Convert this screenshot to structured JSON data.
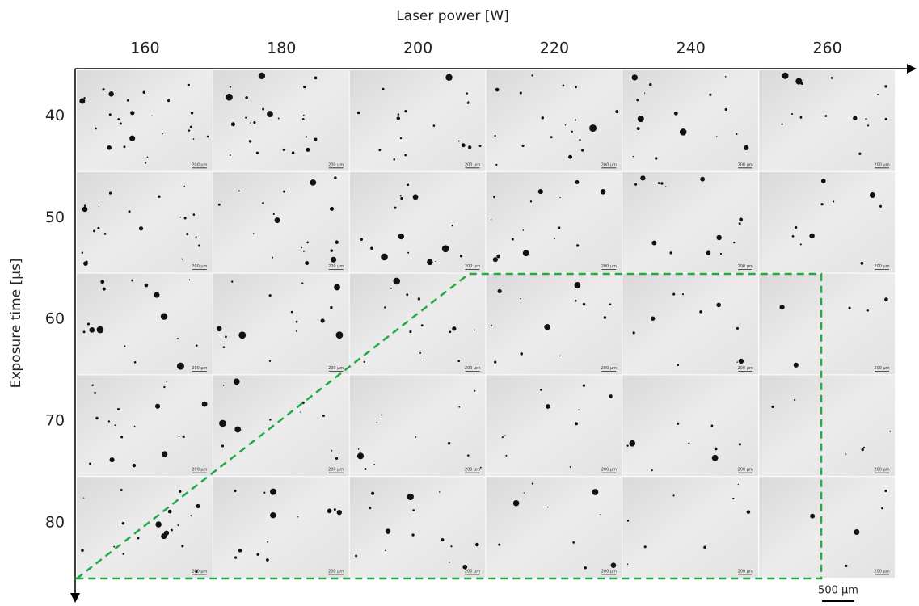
{
  "x_axis": {
    "label": "Laser power [W]",
    "columns": [
      "160",
      "180",
      "200",
      "220",
      "240",
      "260"
    ]
  },
  "y_axis": {
    "label": "Exposure time [µs]",
    "rows": [
      "40",
      "50",
      "60",
      "70",
      "80"
    ]
  },
  "tile_scale_label": "200 µm",
  "scale_bar": "500 µm"
}
